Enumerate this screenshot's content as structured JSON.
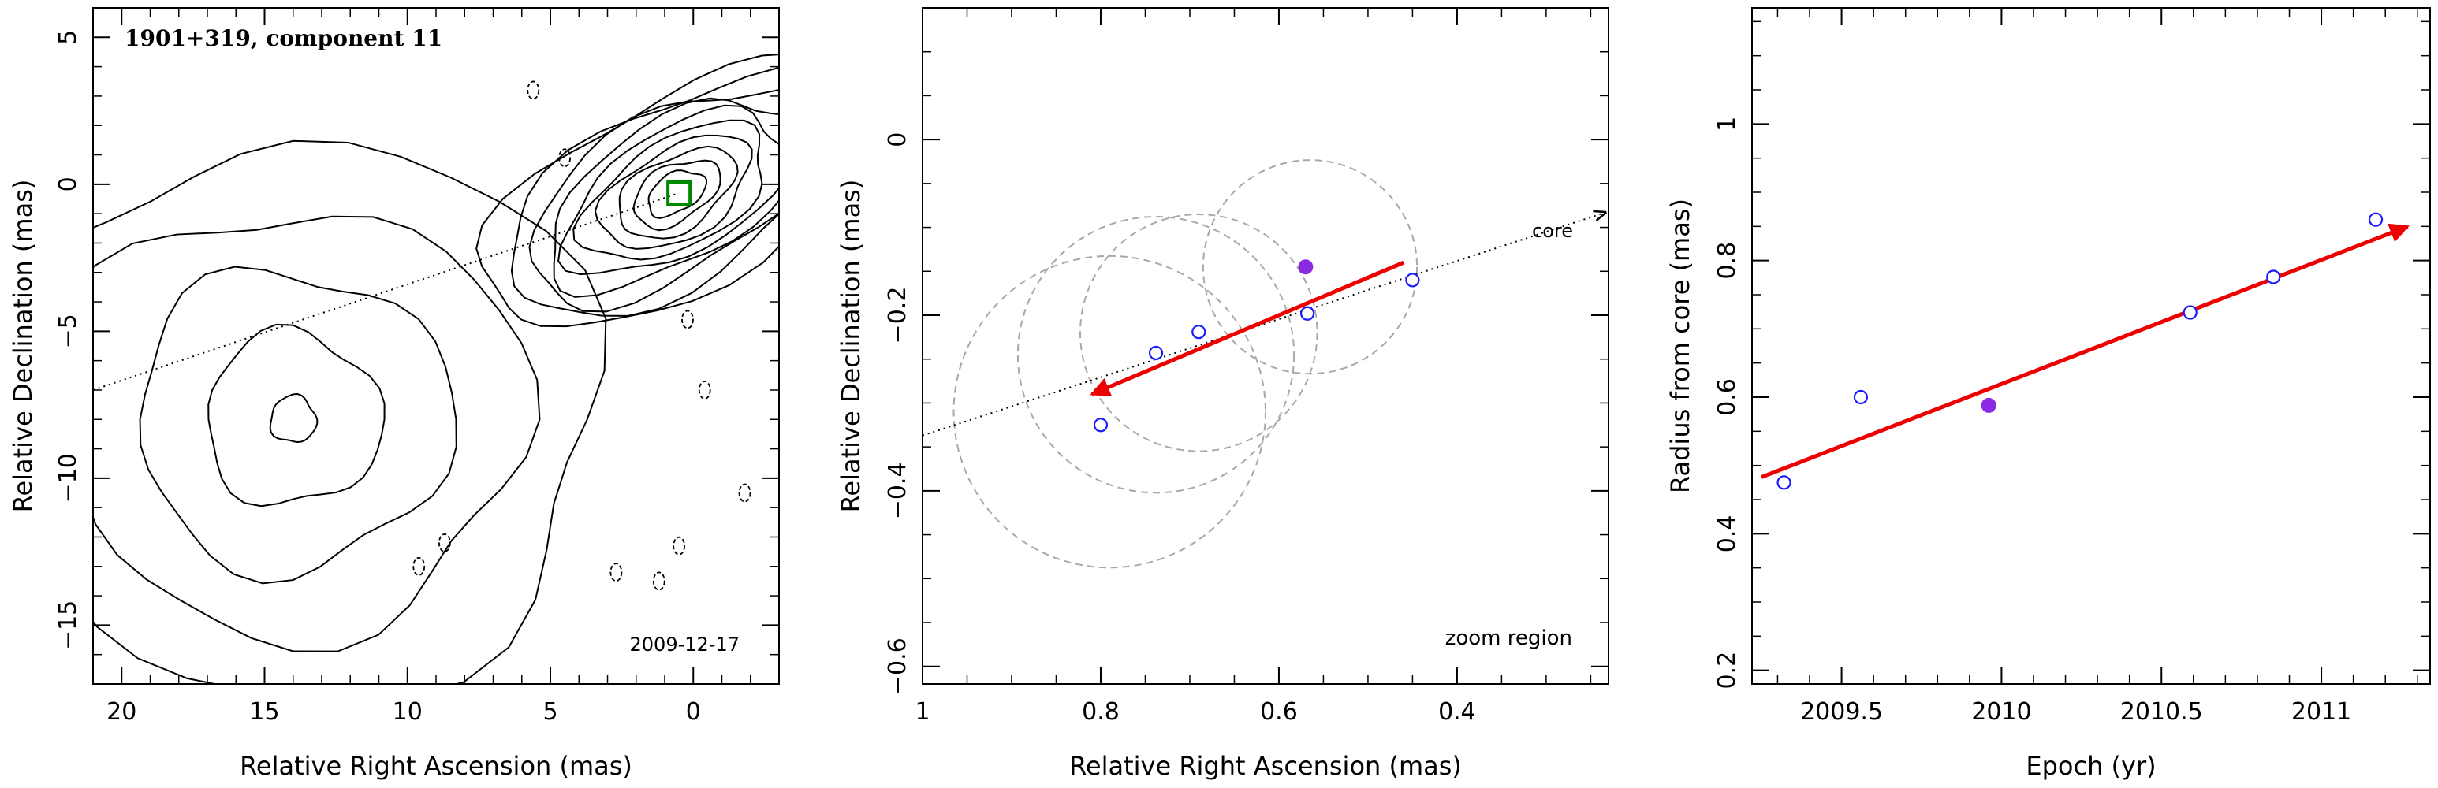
{
  "chart_data": [
    {
      "type": "contour",
      "title": "1901+319, component 11",
      "xlabel": "Relative Right Ascension (mas)",
      "ylabel": "Relative Declination (mas)",
      "xlim": [
        21,
        -3
      ],
      "ylim": [
        -17,
        6
      ],
      "xticks": [
        20,
        15,
        10,
        5,
        0
      ],
      "yticks": [
        5,
        0,
        -5,
        -10,
        -15
      ],
      "date_label": "2009-12-17",
      "jet_line": {
        "x": [
          21,
          0.5
        ],
        "y": [
          -7.0,
          -0.3
        ]
      },
      "core_marker": {
        "x": 0.5,
        "y": -0.3
      },
      "contour_sources": [
        {
          "x": 0.6,
          "y": -0.3,
          "rx": 1.1,
          "ry": 0.65,
          "levels": 10,
          "step": 0.15,
          "angle": -30
        },
        {
          "x": 14,
          "y": -8,
          "rx": 0.8,
          "ry": 0.8,
          "levels": 5,
          "step": 0.9,
          "angle": 0
        }
      ],
      "negative_contours": [
        [
          5.6,
          3.2
        ],
        [
          4.5,
          0.9
        ],
        [
          0.2,
          -4.6
        ],
        [
          -0.4,
          -7.0
        ],
        [
          -1.8,
          -10.5
        ],
        [
          9.6,
          -13.0
        ],
        [
          2.7,
          -13.2
        ],
        [
          0.5,
          -12.3
        ],
        [
          1.2,
          -13.5
        ],
        [
          8.7,
          -12.2
        ]
      ]
    },
    {
      "type": "scatter",
      "xlabel": "Relative Right Ascension (mas)",
      "ylabel": "Relative Declination (mas)",
      "xlim": [
        1.0,
        0.23
      ],
      "ylim": [
        -0.62,
        0.15
      ],
      "xticks": [
        1,
        0.8,
        0.6,
        0.4
      ],
      "yticks": [
        0,
        -0.2,
        -0.4,
        -0.6
      ],
      "region_label": "zoom region",
      "core_label": "core",
      "open_points": [
        {
          "x": 0.8,
          "y": -0.325
        },
        {
          "x": 0.738,
          "y": -0.243
        },
        {
          "x": 0.69,
          "y": -0.219
        },
        {
          "x": 0.568,
          "y": -0.198
        },
        {
          "x": 0.45,
          "y": -0.16
        }
      ],
      "filled_points": [
        {
          "x": 0.57,
          "y": -0.145
        }
      ],
      "circles": [
        {
          "x": 0.79,
          "y": -0.31,
          "r": 0.175
        },
        {
          "x": 0.738,
          "y": -0.245,
          "r": 0.155
        },
        {
          "x": 0.69,
          "y": -0.22,
          "r": 0.133
        },
        {
          "x": 0.565,
          "y": -0.145,
          "r": 0.12
        }
      ],
      "fit_arrow": {
        "x1": 0.46,
        "y1": -0.14,
        "x2": 0.81,
        "y2": -0.29
      },
      "jet_line": {
        "x": [
          1.0,
          0.23
        ],
        "y": [
          -0.337,
          -0.083
        ]
      },
      "colors": {
        "open": "#1a1aff",
        "filled": "#8a2be2",
        "fit": "#ee0000",
        "circle": "#a8a8a8"
      }
    },
    {
      "type": "scatter",
      "xlabel": "Epoch (yr)",
      "ylabel": "Radius from core (mas)",
      "xlim": [
        2009.22,
        2011.34
      ],
      "ylim": [
        0.18,
        1.17
      ],
      "xticks": [
        2009.5,
        2010,
        2010.5,
        2011
      ],
      "yticks": [
        0.2,
        0.4,
        0.6,
        0.8,
        1
      ],
      "open_points": [
        {
          "x": 2009.32,
          "y": 0.475
        },
        {
          "x": 2009.56,
          "y": 0.6
        },
        {
          "x": 2010.59,
          "y": 0.724
        },
        {
          "x": 2010.85,
          "y": 0.776
        },
        {
          "x": 2011.17,
          "y": 0.86
        }
      ],
      "filled_points": [
        {
          "x": 2009.96,
          "y": 0.588
        }
      ],
      "fit_arrow": {
        "x1": 2009.25,
        "y1": 0.483,
        "x2": 2011.27,
        "y2": 0.85
      },
      "colors": {
        "open": "#1a1aff",
        "filled": "#8a2be2",
        "fit": "#ee0000"
      }
    }
  ]
}
